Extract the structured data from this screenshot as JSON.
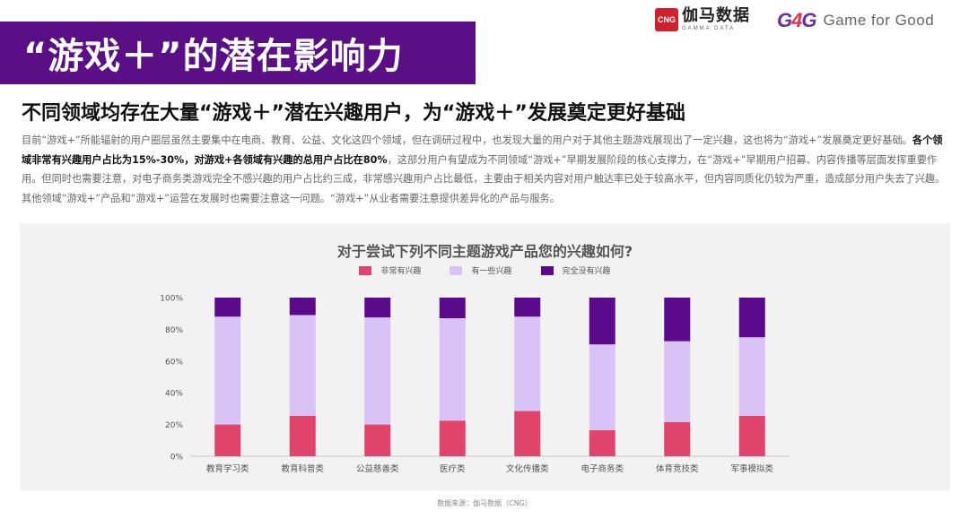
{
  "header": {
    "title": "“游戏＋”的潜在影响力",
    "brand_cng_badge": "CNG",
    "brand_cng_name": "伽马数据",
    "brand_cng_en": "GAMMA DATA",
    "brand_g4g_mark": "G4G",
    "brand_g4g_tagline": "Game for Good"
  },
  "subtitle": "不同领域均存在大量“游戏＋”潜在兴趣用户，为“游戏＋”发展奠定更好基础",
  "body": {
    "part1": "目前“游戏+”所能辐射的用户圈层虽然主要集中在电商、教育、公益、文化这四个领域，但在调研过程中，也发现大量的用户对于其他主题游戏展现出了一定兴趣，这也将为“游戏+”发展奠定更好基础。",
    "bold": "各个领域非常有兴趣用户占比为15%-30%，对游戏+各领域有兴趣的总用户占比在80%",
    "part2": "，这部分用户有望成为不同领域“游戏+”早期发展阶段的核心支撑力，在“游戏+”早期用户招募、内容传播等层面发挥重要作用。但同时也需要注意，对电子商务类游戏完全不感兴趣的用户占比约三成，非常感兴趣用户占比最低，主要由于相关内容对用户触达率已处于较高水平，但内容同质化仍较为严重，造成部分用户失去了兴趣。其他领域“游戏+”产品和“游戏+”运营在发展时也需要注意这一问题。“游戏+”从业者需要注意提供差异化的产品与服务。"
  },
  "source": "数据来源：伽马数据（CNG）",
  "colors": {
    "banner": "#5b0f86",
    "very": "#e0446b",
    "some": "#d9c2f5",
    "none": "#5c0a8c"
  },
  "chart_data": {
    "type": "bar",
    "stacked": true,
    "title": "对于尝试下列不同主题游戏产品您的兴趣如何?",
    "categories": [
      "教育学习类",
      "教育科普类",
      "公益慈善类",
      "医疗类",
      "文化传播类",
      "电子商务类",
      "体育竞技类",
      "军事模拟类"
    ],
    "series": [
      {
        "name": "非常有兴趣",
        "color": "#e0446b",
        "values": [
          20,
          25.5,
          20,
          22.5,
          28.5,
          16.5,
          21.5,
          25.5
        ]
      },
      {
        "name": "有一些兴趣",
        "color": "#d9c2f5",
        "values": [
          68,
          63.5,
          67.5,
          64.5,
          59.5,
          54,
          51,
          49.5
        ]
      },
      {
        "name": "完全没有兴趣",
        "color": "#5c0a8c",
        "values": [
          12,
          11,
          12.5,
          13,
          12,
          29.5,
          27.5,
          25
        ]
      }
    ],
    "ylim": [
      0,
      100
    ],
    "yticks": [
      "0%",
      "20%",
      "40%",
      "60%",
      "80%",
      "100%"
    ],
    "legend_position": "top-center",
    "grid": false
  }
}
